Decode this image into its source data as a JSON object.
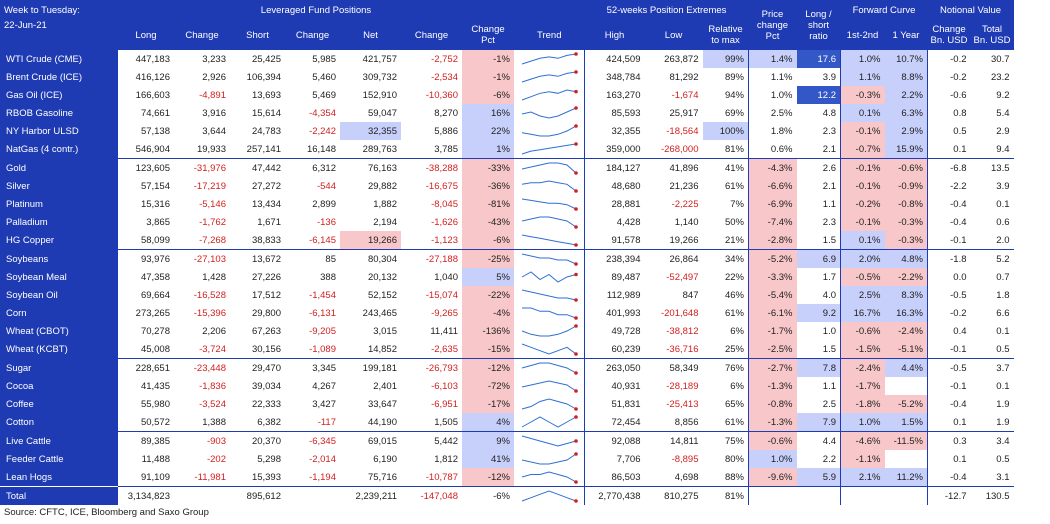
{
  "header": {
    "title_line1": "Week to Tuesday:",
    "title_line2": "22-Jun-21",
    "group_leveraged": "Leveraged Fund Positions",
    "group_52w": "52-weeks Position Extremes",
    "group_forward": "Forward Curve",
    "group_notional": "Notional Value",
    "col_long": "Long",
    "col_change": "Change",
    "col_short": "Short",
    "col_change2": "Change",
    "col_net": "Net",
    "col_change3": "Change",
    "col_change_pct_1": "Change",
    "col_change_pct_2": "Pct",
    "col_trend": "Trend",
    "col_high": "High",
    "col_low": "Low",
    "col_rel_1": "Relative",
    "col_rel_2": "to max",
    "col_price_1": "Price",
    "col_price_2": "change",
    "col_price_3": "Pct",
    "col_ls_1": "Long /",
    "col_ls_2": "short",
    "col_ls_3": "ratio",
    "col_1st2nd": "1st-2nd",
    "col_1year": "1 Year",
    "col_chg_bn_1": "Change",
    "col_chg_bn_2": "Bn. USD",
    "col_tot_bn_1": "Total",
    "col_tot_bn_2": "Bn. USD"
  },
  "colors": {
    "header_blue": "#1f3bb3",
    "negative_red": "#d21f1f",
    "highlight_red": "#f8c7c9",
    "highlight_blue": "#c7cffb",
    "highlight_darkblue": "#3357c7",
    "trend_line": "#2f6fd6",
    "trend_dot": "#d21f1f"
  },
  "rows": [
    {
      "name": "WTI Crude (CME)",
      "long": "447,183",
      "chg": "3,233",
      "short": "25,425",
      "chg2": "5,985",
      "net": "421,757",
      "chg3": "-2,752",
      "pct": "-1%",
      "trend": [
        3,
        5,
        7,
        8,
        7,
        9,
        10
      ],
      "high": "424,509",
      "low": "263,872",
      "rel": "99%",
      "price": "1.4%",
      "ls": "17.6",
      "fc1": "1.0%",
      "fc2": "10.7%",
      "nchg": "-0.2",
      "ntot": "30.7",
      "hl": {
        "net": "",
        "pct": "red",
        "rel": "blue",
        "price": "blue",
        "ls": "dark",
        "fc1": "blue",
        "fc2": "blue"
      }
    },
    {
      "name": "Brent Crude (ICE)",
      "long": "416,126",
      "chg": "2,926",
      "short": "106,394",
      "chg2": "5,460",
      "net": "309,732",
      "chg3": "-2,534",
      "pct": "-1%",
      "trend": [
        3,
        5,
        7,
        8,
        7,
        9,
        10
      ],
      "high": "348,784",
      "low": "81,292",
      "rel": "89%",
      "price": "1.1%",
      "ls": "3.9",
      "fc1": "1.1%",
      "fc2": "8.8%",
      "nchg": "-0.2",
      "ntot": "23.2",
      "hl": {
        "pct": "red",
        "fc1": "blue",
        "fc2": "blue"
      }
    },
    {
      "name": "Gas Oil (ICE)",
      "long": "166,603",
      "chg": "-4,891",
      "short": "13,693",
      "chg2": "5,469",
      "net": "152,910",
      "chg3": "-10,360",
      "pct": "-6%",
      "trend": [
        4,
        6,
        8,
        9,
        8,
        10,
        9
      ],
      "high": "163,270",
      "low": "-1,674",
      "rel": "94%",
      "price": "1.0%",
      "ls": "12.2",
      "fc1": "-0.3%",
      "fc2": "2.2%",
      "nchg": "-0.6",
      "ntot": "9.2",
      "hl": {
        "pct": "red",
        "ls": "dark",
        "fc1": "red",
        "fc2": "blue"
      }
    },
    {
      "name": "RBOB Gasoline",
      "long": "74,661",
      "chg": "3,916",
      "short": "15,614",
      "chg2": "-4,354",
      "net": "59,047",
      "chg3": "8,270",
      "pct": "16%",
      "trend": [
        7,
        8,
        6,
        5,
        6,
        8,
        10
      ],
      "high": "85,593",
      "low": "25,917",
      "rel": "69%",
      "price": "2.5%",
      "ls": "4.8",
      "fc1": "0.1%",
      "fc2": "6.3%",
      "nchg": "0.8",
      "ntot": "5.4",
      "hl": {
        "pct": "blue",
        "fc1": "blue",
        "fc2": "blue"
      }
    },
    {
      "name": "NY Harbor ULSD",
      "long": "57,138",
      "chg": "3,644",
      "short": "24,783",
      "chg2": "-2,242",
      "net": "32,355",
      "chg3": "5,886",
      "pct": "22%",
      "trend": [
        5,
        4,
        3,
        3,
        4,
        6,
        9
      ],
      "high": "32,355",
      "low": "-18,564",
      "rel": "100%",
      "price": "1.8%",
      "ls": "2.3",
      "fc1": "-0.1%",
      "fc2": "2.9%",
      "nchg": "0.5",
      "ntot": "2.9",
      "hl": {
        "net": "blue",
        "pct": "blue",
        "rel": "blue",
        "fc1": "red",
        "fc2": "blue"
      }
    },
    {
      "name": "NatGas (4 contr.)",
      "long": "546,904",
      "chg": "19,933",
      "short": "257,141",
      "chg2": "16,148",
      "net": "289,763",
      "chg3": "3,785",
      "pct": "1%",
      "trend": [
        3,
        5,
        6,
        7,
        8,
        9,
        10
      ],
      "high": "359,000",
      "low": "-268,000",
      "rel": "81%",
      "price": "0.6%",
      "ls": "2.1",
      "fc1": "-0.7%",
      "fc2": "15.9%",
      "nchg": "0.1",
      "ntot": "9.4",
      "hl": {
        "pct": "blue",
        "fc1": "red",
        "fc2": "blue"
      }
    },
    {
      "name": "Gold",
      "long": "123,605",
      "chg": "-31,976",
      "short": "47,442",
      "chg2": "6,312",
      "net": "76,163",
      "chg3": "-38,288",
      "pct": "-33%",
      "trend": [
        6,
        7,
        8,
        9,
        9,
        8,
        4
      ],
      "high": "184,127",
      "low": "41,896",
      "rel": "41%",
      "price": "-4.3%",
      "ls": "2.6",
      "fc1": "-0.1%",
      "fc2": "-0.6%",
      "nchg": "-6.8",
      "ntot": "13.5",
      "hl": {
        "pct": "red",
        "price": "red",
        "fc1": "red",
        "fc2": "red"
      },
      "gs": true
    },
    {
      "name": "Silver",
      "long": "57,154",
      "chg": "-17,219",
      "short": "27,272",
      "chg2": "-544",
      "net": "29,882",
      "chg3": "-16,675",
      "pct": "-36%",
      "trend": [
        7,
        8,
        8,
        9,
        8,
        7,
        3
      ],
      "high": "48,680",
      "low": "21,236",
      "rel": "61%",
      "price": "-6.6%",
      "ls": "2.1",
      "fc1": "-0.1%",
      "fc2": "-0.9%",
      "nchg": "-2.2",
      "ntot": "3.9",
      "hl": {
        "pct": "red",
        "price": "red",
        "fc1": "red",
        "fc2": "red"
      }
    },
    {
      "name": "Platinum",
      "long": "15,316",
      "chg": "-5,146",
      "short": "13,434",
      "chg2": "2,899",
      "net": "1,882",
      "chg3": "-8,045",
      "pct": "-81%",
      "trend": [
        9,
        8,
        7,
        6,
        6,
        5,
        2
      ],
      "high": "28,881",
      "low": "-2,225",
      "rel": "7%",
      "price": "-6.9%",
      "ls": "1.1",
      "fc1": "-0.2%",
      "fc2": "-0.8%",
      "nchg": "-0.4",
      "ntot": "0.1",
      "hl": {
        "pct": "red",
        "price": "red",
        "fc1": "red",
        "fc2": "red"
      }
    },
    {
      "name": "Palladium",
      "long": "3,865",
      "chg": "-1,762",
      "short": "1,671",
      "chg2": "-136",
      "net": "2,194",
      "chg3": "-1,626",
      "pct": "-43%",
      "trend": [
        6,
        7,
        8,
        8,
        7,
        6,
        3
      ],
      "high": "4,428",
      "low": "1,140",
      "rel": "50%",
      "price": "-7.4%",
      "ls": "2.3",
      "fc1": "-0.1%",
      "fc2": "-0.3%",
      "nchg": "-0.4",
      "ntot": "0.6",
      "hl": {
        "pct": "red",
        "price": "red",
        "fc1": "red",
        "fc2": "red"
      }
    },
    {
      "name": "HG Copper",
      "long": "58,099",
      "chg": "-7,268",
      "short": "38,833",
      "chg2": "-6,145",
      "net": "19,266",
      "chg3": "-1,123",
      "pct": "-6%",
      "trend": [
        9,
        8,
        7,
        6,
        5,
        4,
        3
      ],
      "high": "91,578",
      "low": "19,266",
      "rel": "21%",
      "price": "-2.8%",
      "ls": "1.5",
      "fc1": "0.1%",
      "fc2": "-0.3%",
      "nchg": "-0.1",
      "ntot": "2.0",
      "hl": {
        "net": "red",
        "pct": "red",
        "price": "red",
        "fc1": "blue",
        "fc2": "red"
      }
    },
    {
      "name": "Soybeans",
      "long": "93,976",
      "chg": "-27,103",
      "short": "13,672",
      "chg2": "85",
      "net": "80,304",
      "chg3": "-27,188",
      "pct": "-25%",
      "trend": [
        8,
        7,
        6,
        6,
        5,
        5,
        3
      ],
      "high": "238,394",
      "low": "26,864",
      "rel": "34%",
      "price": "-5.2%",
      "ls": "6.9",
      "fc1": "2.0%",
      "fc2": "4.8%",
      "nchg": "-1.8",
      "ntot": "5.2",
      "hl": {
        "pct": "red",
        "price": "red",
        "ls": "blue",
        "fc1": "blue",
        "fc2": "blue"
      },
      "gs": true
    },
    {
      "name": "Soybean Meal",
      "long": "47,358",
      "chg": "1,428",
      "short": "27,226",
      "chg2": "388",
      "net": "20,132",
      "chg3": "1,040",
      "pct": "5%",
      "trend": [
        6,
        8,
        5,
        7,
        4,
        6,
        7
      ],
      "high": "89,487",
      "low": "-52,497",
      "rel": "22%",
      "price": "-3.3%",
      "ls": "1.7",
      "fc1": "-0.5%",
      "fc2": "-2.2%",
      "nchg": "0.0",
      "ntot": "0.7",
      "hl": {
        "pct": "blue",
        "price": "red",
        "fc1": "red",
        "fc2": "red"
      }
    },
    {
      "name": "Soybean Oil",
      "long": "69,664",
      "chg": "-16,528",
      "short": "17,512",
      "chg2": "-1,454",
      "net": "52,152",
      "chg3": "-15,074",
      "pct": "-22%",
      "trend": [
        9,
        8,
        7,
        6,
        5,
        5,
        4
      ],
      "high": "112,989",
      "low": "847",
      "rel": "46%",
      "price": "-5.4%",
      "ls": "4.0",
      "fc1": "2.5%",
      "fc2": "8.3%",
      "nchg": "-0.5",
      "ntot": "1.8",
      "hl": {
        "pct": "red",
        "price": "red",
        "fc1": "blue",
        "fc2": "blue"
      }
    },
    {
      "name": "Corn",
      "long": "273,265",
      "chg": "-15,396",
      "short": "29,800",
      "chg2": "-6,131",
      "net": "243,465",
      "chg3": "-9,265",
      "pct": "-4%",
      "trend": [
        9,
        9,
        8,
        8,
        7,
        7,
        6
      ],
      "high": "401,993",
      "low": "-201,648",
      "rel": "61%",
      "price": "-6.1%",
      "ls": "9.2",
      "fc1": "16.7%",
      "fc2": "16.3%",
      "nchg": "-0.2",
      "ntot": "6.6",
      "hl": {
        "pct": "red",
        "price": "red",
        "ls": "blue",
        "fc1": "blue",
        "fc2": "blue"
      }
    },
    {
      "name": "Wheat (CBOT)",
      "long": "70,278",
      "chg": "2,206",
      "short": "67,263",
      "chg2": "-9,205",
      "net": "3,015",
      "chg3": "11,411",
      "pct": "-136%",
      "trend": [
        6,
        4,
        3,
        3,
        4,
        6,
        9
      ],
      "high": "49,728",
      "low": "-38,812",
      "rel": "6%",
      "price": "-1.7%",
      "ls": "1.0",
      "fc1": "-0.6%",
      "fc2": "-2.4%",
      "nchg": "0.4",
      "ntot": "0.1",
      "hl": {
        "pct": "red",
        "price": "red",
        "fc1": "red",
        "fc2": "red"
      }
    },
    {
      "name": "Wheat (KCBT)",
      "long": "45,008",
      "chg": "-3,724",
      "short": "30,156",
      "chg2": "-1,089",
      "net": "14,852",
      "chg3": "-2,635",
      "pct": "-15%",
      "trend": [
        8,
        7,
        6,
        5,
        6,
        7,
        5
      ],
      "high": "60,239",
      "low": "-36,716",
      "rel": "25%",
      "price": "-2.5%",
      "ls": "1.5",
      "fc1": "-1.5%",
      "fc2": "-5.1%",
      "nchg": "-0.1",
      "ntot": "0.5",
      "hl": {
        "pct": "red",
        "price": "red",
        "fc1": "red",
        "fc2": "red"
      }
    },
    {
      "name": "Sugar",
      "long": "228,651",
      "chg": "-23,448",
      "short": "29,470",
      "chg2": "3,345",
      "net": "199,181",
      "chg3": "-26,793",
      "pct": "-12%",
      "trend": [
        7,
        8,
        9,
        9,
        8,
        7,
        5
      ],
      "high": "263,050",
      "low": "58,349",
      "rel": "76%",
      "price": "-2.7%",
      "ls": "7.8",
      "fc1": "-2.4%",
      "fc2": "4.4%",
      "nchg": "-0.5",
      "ntot": "3.7",
      "hl": {
        "pct": "red",
        "price": "red",
        "ls": "blue",
        "fc1": "red",
        "fc2": "blue"
      },
      "gs": true
    },
    {
      "name": "Cocoa",
      "long": "41,435",
      "chg": "-1,836",
      "short": "39,034",
      "chg2": "4,267",
      "net": "2,401",
      "chg3": "-6,103",
      "pct": "-72%",
      "trend": [
        5,
        6,
        7,
        8,
        7,
        6,
        3
      ],
      "high": "40,931",
      "low": "-28,189",
      "rel": "6%",
      "price": "-1.3%",
      "ls": "1.1",
      "fc1": "-1.7%",
      "fc2": "",
      "nchg": "-0.1",
      "ntot": "0.1",
      "hl": {
        "pct": "red",
        "price": "red",
        "fc1": "red"
      }
    },
    {
      "name": "Coffee",
      "long": "55,980",
      "chg": "-3,524",
      "short": "22,333",
      "chg2": "3,427",
      "net": "33,647",
      "chg3": "-6,951",
      "pct": "-17%",
      "trend": [
        5,
        6,
        8,
        9,
        8,
        7,
        5
      ],
      "high": "51,831",
      "low": "-25,413",
      "rel": "65%",
      "price": "-0.8%",
      "ls": "2.5",
      "fc1": "-1.8%",
      "fc2": "-5.2%",
      "nchg": "-0.4",
      "ntot": "1.9",
      "hl": {
        "pct": "red",
        "price": "red",
        "fc1": "red",
        "fc2": "red"
      }
    },
    {
      "name": "Cotton",
      "long": "50,572",
      "chg": "1,388",
      "short": "6,382",
      "chg2": "-117",
      "net": "44,190",
      "chg3": "1,505",
      "pct": "4%",
      "trend": [
        6,
        7,
        8,
        7,
        6,
        7,
        8
      ],
      "high": "72,454",
      "low": "8,856",
      "rel": "61%",
      "price": "-1.3%",
      "ls": "7.9",
      "fc1": "1.0%",
      "fc2": "1.5%",
      "nchg": "0.1",
      "ntot": "1.9",
      "hl": {
        "pct": "blue",
        "price": "red",
        "ls": "blue",
        "fc1": "blue",
        "fc2": "blue"
      }
    },
    {
      "name": "Live Cattle",
      "long": "89,385",
      "chg": "-903",
      "short": "20,370",
      "chg2": "-6,345",
      "net": "69,015",
      "chg3": "5,442",
      "pct": "9%",
      "trend": [
        8,
        7,
        6,
        5,
        4,
        5,
        6
      ],
      "high": "92,088",
      "low": "14,811",
      "rel": "75%",
      "price": "-0.6%",
      "ls": "4.4",
      "fc1": "-4.6%",
      "fc2": "-11.5%",
      "nchg": "0.3",
      "ntot": "3.4",
      "hl": {
        "pct": "blue",
        "price": "red",
        "fc1": "red",
        "fc2": "red"
      },
      "gs": true
    },
    {
      "name": "Feeder Cattle",
      "long": "11,488",
      "chg": "-202",
      "short": "5,298",
      "chg2": "-2,014",
      "net": "6,190",
      "chg3": "1,812",
      "pct": "41%",
      "trend": [
        5,
        4,
        3,
        3,
        4,
        5,
        8
      ],
      "high": "7,706",
      "low": "-8,895",
      "rel": "80%",
      "price": "1.0%",
      "ls": "2.2",
      "fc1": "-1.1%",
      "fc2": "",
      "nchg": "0.1",
      "ntot": "0.5",
      "hl": {
        "pct": "blue",
        "price": "blue",
        "fc1": "red"
      }
    },
    {
      "name": "Lean Hogs",
      "long": "91,109",
      "chg": "-11,981",
      "short": "15,393",
      "chg2": "-1,194",
      "net": "75,716",
      "chg3": "-10,787",
      "pct": "-12%",
      "trend": [
        8,
        9,
        9,
        10,
        9,
        8,
        6
      ],
      "high": "86,503",
      "low": "4,698",
      "rel": "88%",
      "price": "-9.6%",
      "ls": "5.9",
      "fc1": "2.1%",
      "fc2": "11.2%",
      "nchg": "-0.4",
      "ntot": "3.1",
      "hl": {
        "pct": "red",
        "price": "red",
        "ls": "blue",
        "fc1": "blue",
        "fc2": "blue"
      }
    }
  ],
  "total": {
    "name": "Total",
    "long": "3,134,823",
    "short": "895,612",
    "net": "2,239,211",
    "chg3": "-147,048",
    "pct": "-6%",
    "trend": [
      5,
      6,
      7,
      8,
      7,
      6,
      5
    ],
    "high": "2,770,438",
    "low": "810,275",
    "rel": "81%",
    "nchg": "-12.7",
    "ntot": "130.5"
  },
  "source": "Source: CFTC, ICE, Bloomberg and Saxo Group"
}
